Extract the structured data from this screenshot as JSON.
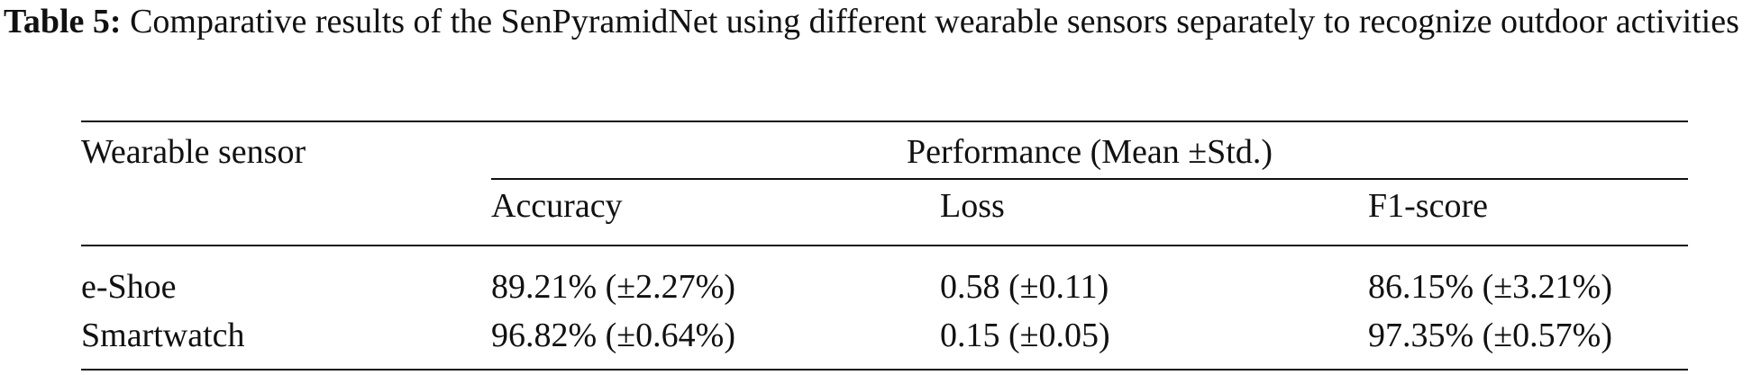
{
  "caption": {
    "label": "Table 5:",
    "text": "Comparative results of the SenPyramidNet using different wearable sensors separately to recognize outdoor activities"
  },
  "table": {
    "header": {
      "row_label": "Wearable sensor",
      "group": "Performance (Mean ±Std.)",
      "columns": [
        "Accuracy",
        "Loss",
        "F1-score"
      ]
    },
    "rows": [
      [
        "e-Shoe",
        "89.21% (±2.27%)",
        "0.58 (±0.11)",
        "86.15% (±3.21%)"
      ],
      [
        "Smartwatch",
        "96.82% (±0.64%)",
        "0.15 (±0.05)",
        "97.35% (±0.57%)"
      ]
    ]
  }
}
